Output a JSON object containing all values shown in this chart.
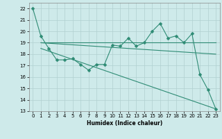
{
  "xlabel": "Humidex (Indice chaleur)",
  "xlim": [
    -0.5,
    23.5
  ],
  "ylim": [
    13,
    22.5
  ],
  "yticks": [
    13,
    14,
    15,
    16,
    17,
    18,
    19,
    20,
    21,
    22
  ],
  "xticks": [
    0,
    1,
    2,
    3,
    4,
    5,
    6,
    7,
    8,
    9,
    10,
    11,
    12,
    13,
    14,
    15,
    16,
    17,
    18,
    19,
    20,
    21,
    22,
    23
  ],
  "line_color": "#2e8b74",
  "bg_color": "#ceeaea",
  "grid_color": "#b0d0d0",
  "line1_x": [
    0,
    1,
    2,
    3,
    4,
    5,
    6,
    7,
    8,
    9,
    10,
    11,
    12,
    13,
    14,
    15,
    16,
    17,
    18,
    19,
    20,
    21,
    22,
    23
  ],
  "line1_y": [
    22.0,
    19.6,
    18.5,
    17.5,
    17.5,
    17.6,
    17.1,
    16.6,
    17.1,
    17.1,
    18.8,
    18.7,
    19.4,
    18.7,
    19.0,
    20.0,
    20.7,
    19.4,
    19.6,
    19.0,
    19.8,
    16.2,
    14.9,
    13.2
  ],
  "line2_x": [
    1,
    9,
    19,
    23
  ],
  "line2_y": [
    19.0,
    19.0,
    19.0,
    19.0
  ],
  "line3_x": [
    1,
    23
  ],
  "line3_y": [
    19.0,
    18.0
  ],
  "line4_x": [
    1,
    23
  ],
  "line4_y": [
    18.5,
    13.2
  ],
  "markersize": 2.5,
  "linewidth": 0.8
}
